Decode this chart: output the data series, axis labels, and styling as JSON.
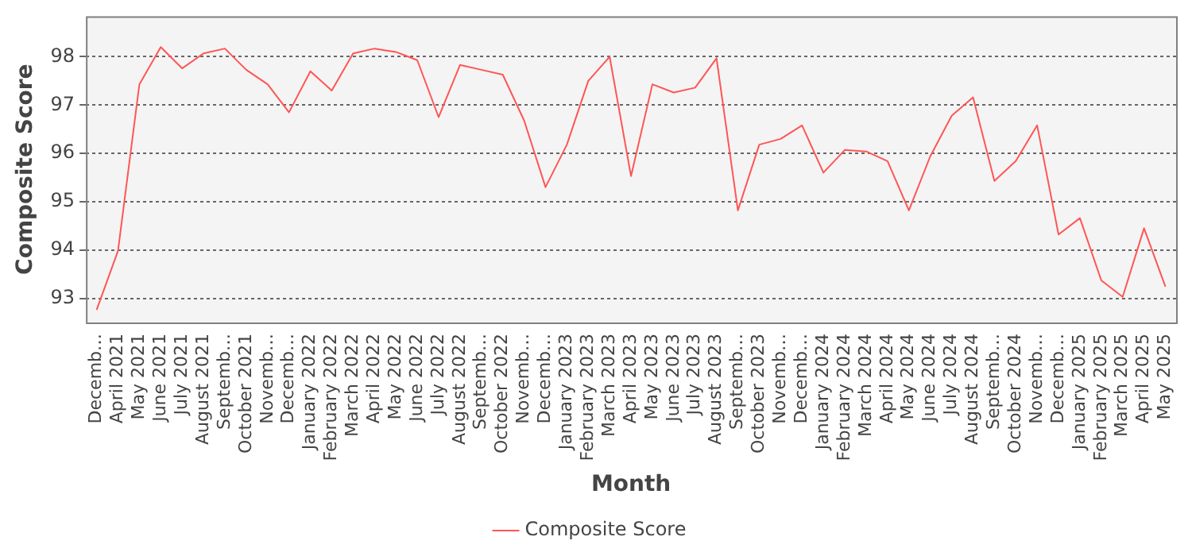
{
  "chart_data": {
    "type": "line",
    "xlabel": "Month",
    "ylabel": "Composite Score",
    "categories": [
      "Decemb…",
      "April 2021",
      "May 2021",
      "June 2021",
      "July 2021",
      "August 2021",
      "Septemb…",
      "October 2021",
      "Novemb…",
      "Decemb…",
      "January 2022",
      "February 2022",
      "March 2022",
      "April 2022",
      "May 2022",
      "June 2022",
      "July 2022",
      "August 2022",
      "Septemb…",
      "October 2022",
      "Novemb…",
      "Decemb…",
      "January 2023",
      "February 2023",
      "March 2023",
      "April 2023",
      "May 2023",
      "June 2023",
      "July 2023",
      "August 2023",
      "Septemb…",
      "October 2023",
      "Novemb…",
      "Decemb…",
      "January 2024",
      "February 2024",
      "March 2024",
      "April 2024",
      "May 2024",
      "June 2024",
      "July 2024",
      "August 2024",
      "Septemb…",
      "October 2024",
      "Novemb…",
      "Decemb…",
      "January 2025",
      "February 2025",
      "March 2025",
      "April 2025",
      "May 2025"
    ],
    "series": [
      {
        "name": "Composite Score",
        "color": "#ff5555",
        "values": [
          92.76,
          93.98,
          97.43,
          98.2,
          97.76,
          98.07,
          98.17,
          97.73,
          97.43,
          96.85,
          97.7,
          97.3,
          98.07,
          98.17,
          98.1,
          97.93,
          96.75,
          97.83,
          97.73,
          97.63,
          96.68,
          95.3,
          96.18,
          97.5,
          98.0,
          95.53,
          97.43,
          97.26,
          97.36,
          97.97,
          94.82,
          96.18,
          96.3,
          96.58,
          95.6,
          96.07,
          96.04,
          95.84,
          94.82,
          95.94,
          96.78,
          97.16,
          95.43,
          95.84,
          96.58,
          94.32,
          94.66,
          93.37,
          93.03,
          94.45,
          93.24
        ]
      }
    ],
    "ylim": [
      92.5,
      98.84
    ],
    "yticks": [
      93,
      94,
      95,
      96,
      97,
      98
    ],
    "grid": "y",
    "legend": "bottom",
    "marker": "none",
    "line_style": "solid"
  }
}
